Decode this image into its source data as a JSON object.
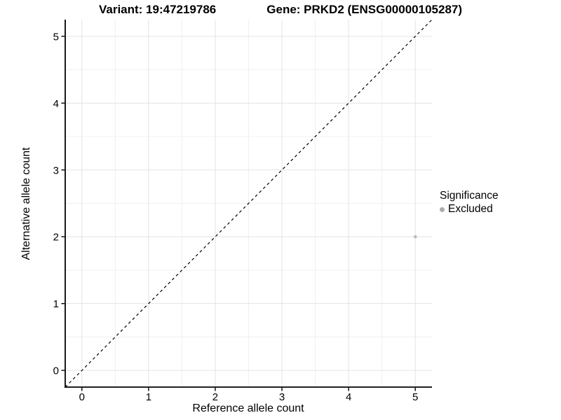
{
  "chart_data": {
    "type": "scatter",
    "title_left": "Variant: 19:47219786",
    "title_right": "Gene: PRKD2 (ENSG00000105287)",
    "xlabel": "Reference allele count",
    "ylabel": "Alternative allele count",
    "xlim": [
      -0.25,
      5.25
    ],
    "ylim": [
      -0.25,
      5.25
    ],
    "x_ticks": [
      0,
      1,
      2,
      3,
      4,
      5
    ],
    "y_ticks": [
      0,
      1,
      2,
      3,
      4,
      5
    ],
    "minor_ticks": [
      0.5,
      1.5,
      2.5,
      3.5,
      4.5
    ],
    "grid": "major+minor",
    "identity_line": {
      "equation": "y = x",
      "from": [
        -0.25,
        -0.25
      ],
      "to": [
        5.25,
        5.25
      ],
      "style": "dashed",
      "color": "#000000"
    },
    "series": [
      {
        "name": "Excluded",
        "marker": "circle",
        "color": "#bebebe",
        "points": [
          [
            5,
            2
          ]
        ]
      }
    ],
    "legend": {
      "title": "Significance",
      "position": "right",
      "items": [
        {
          "label": "Excluded",
          "marker": "circle",
          "color": "#ababab"
        }
      ]
    },
    "colors": {
      "background": "#ffffff",
      "grid_major": "#e3e3e3",
      "grid_minor": "#f0f0f0",
      "axis": "#000000",
      "text": "#000000"
    }
  }
}
